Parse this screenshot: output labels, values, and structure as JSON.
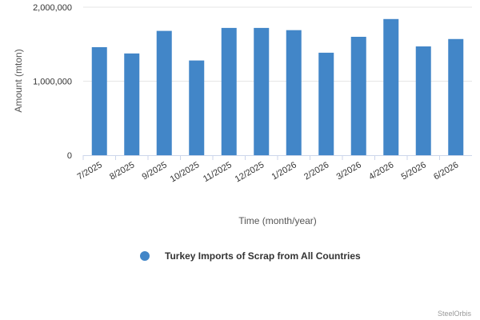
{
  "chart_data": {
    "type": "bar",
    "categories": [
      "7/2025",
      "8/2025",
      "9/2025",
      "10/2025",
      "11/2025",
      "12/2025",
      "1/2026",
      "2/2026",
      "3/2026",
      "4/2026",
      "5/2026",
      "6/2026"
    ],
    "series": [
      {
        "name": "Turkey Imports of Scrap from All Countries",
        "color": "#4286c8",
        "values": [
          1460000,
          1375000,
          1680000,
          1280000,
          1720000,
          1720000,
          1690000,
          1385000,
          1600000,
          1840000,
          1470000,
          1570000
        ]
      }
    ],
    "xlabel": "Time (month/year)",
    "ylabel": "Amount (mton)",
    "ylim": [
      0,
      2000000
    ],
    "yticks": [
      0,
      1000000,
      2000000
    ],
    "ytick_labels": [
      "0",
      "1,000,000",
      "2,000,000"
    ],
    "grid": true,
    "legend_position": "bottom-center"
  },
  "credit": "SteelOrbis"
}
